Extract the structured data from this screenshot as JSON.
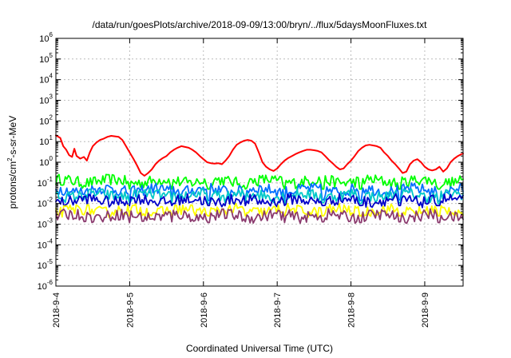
{
  "chart_data": {
    "type": "line",
    "title": "/data/run/goesPlots/archive/2018-09-09/13:00/bryn/../flux/5daysMoonFluxes.txt",
    "xlabel": "Coordinated Universal Time (UTC)",
    "ylabel": "protons/cm2-s-sr-MeV",
    "ylabel_parts": {
      "before": "protons/cm",
      "sup": "2",
      "after": "-s-sr-MeV"
    },
    "yscale": "log",
    "ylim_exp": [
      -6,
      6
    ],
    "y_ticks": [
      {
        "exp": "-6"
      },
      {
        "exp": "-5"
      },
      {
        "exp": "-4"
      },
      {
        "exp": "-3"
      },
      {
        "exp": "-2"
      },
      {
        "exp": "-1"
      },
      {
        "exp": "0"
      },
      {
        "exp": "1"
      },
      {
        "exp": "2"
      },
      {
        "exp": "3"
      },
      {
        "exp": "4"
      },
      {
        "exp": "5"
      },
      {
        "exp": "6"
      }
    ],
    "y_tick_base": "10",
    "x_ticks": [
      "2018-9-4",
      "2018-9-5",
      "2018-9-6",
      "2018-9-7",
      "2018-9-8",
      "2018-9-9"
    ],
    "xlim_days": [
      0,
      5.52
    ],
    "grid": true,
    "series": [
      {
        "color": "#ff0000",
        "points": [
          [
            0.0,
            20
          ],
          [
            0.06,
            15
          ],
          [
            0.1,
            6
          ],
          [
            0.14,
            4
          ],
          [
            0.18,
            2.2
          ],
          [
            0.22,
            1.8
          ],
          [
            0.25,
            4.5
          ],
          [
            0.28,
            2
          ],
          [
            0.33,
            1.5
          ],
          [
            0.38,
            1.8
          ],
          [
            0.42,
            1.2
          ],
          [
            0.46,
            3
          ],
          [
            0.5,
            6
          ],
          [
            0.55,
            9
          ],
          [
            0.6,
            12
          ],
          [
            0.65,
            14
          ],
          [
            0.7,
            17
          ],
          [
            0.75,
            19
          ],
          [
            0.8,
            18
          ],
          [
            0.85,
            17
          ],
          [
            0.9,
            12
          ],
          [
            0.95,
            6
          ],
          [
            1.0,
            3
          ],
          [
            1.05,
            1.5
          ],
          [
            1.1,
            0.7
          ],
          [
            1.15,
            0.3
          ],
          [
            1.2,
            0.22
          ],
          [
            1.25,
            0.3
          ],
          [
            1.3,
            0.45
          ],
          [
            1.35,
            0.8
          ],
          [
            1.4,
            1.2
          ],
          [
            1.45,
            1.6
          ],
          [
            1.5,
            2.0
          ],
          [
            1.55,
            3.0
          ],
          [
            1.6,
            4
          ],
          [
            1.65,
            5
          ],
          [
            1.7,
            6
          ],
          [
            1.75,
            5.5
          ],
          [
            1.8,
            5
          ],
          [
            1.85,
            4
          ],
          [
            1.9,
            3
          ],
          [
            1.95,
            2
          ],
          [
            2.0,
            1.4
          ],
          [
            2.05,
            1.0
          ],
          [
            2.1,
            0.9
          ],
          [
            2.15,
            0.85
          ],
          [
            2.2,
            0.9
          ],
          [
            2.25,
            0.8
          ],
          [
            2.3,
            1.2
          ],
          [
            2.35,
            2
          ],
          [
            2.4,
            4
          ],
          [
            2.45,
            7
          ],
          [
            2.5,
            9
          ],
          [
            2.55,
            11
          ],
          [
            2.6,
            12
          ],
          [
            2.65,
            11
          ],
          [
            2.7,
            8
          ],
          [
            2.75,
            3
          ],
          [
            2.8,
            1.0
          ],
          [
            2.85,
            0.6
          ],
          [
            2.9,
            0.45
          ],
          [
            2.95,
            0.38
          ],
          [
            3.0,
            0.5
          ],
          [
            3.05,
            0.8
          ],
          [
            3.1,
            1.2
          ],
          [
            3.15,
            1.6
          ],
          [
            3.2,
            2.0
          ],
          [
            3.25,
            2.5
          ],
          [
            3.3,
            3
          ],
          [
            3.35,
            3.5
          ],
          [
            3.4,
            4
          ],
          [
            3.45,
            4
          ],
          [
            3.5,
            3.8
          ],
          [
            3.55,
            3.5
          ],
          [
            3.6,
            3
          ],
          [
            3.65,
            2
          ],
          [
            3.7,
            1.3
          ],
          [
            3.75,
            0.9
          ],
          [
            3.8,
            0.6
          ],
          [
            3.85,
            0.45
          ],
          [
            3.9,
            0.5
          ],
          [
            3.95,
            0.8
          ],
          [
            4.0,
            1.2
          ],
          [
            4.05,
            2
          ],
          [
            4.1,
            3.5
          ],
          [
            4.15,
            5
          ],
          [
            4.2,
            6.5
          ],
          [
            4.25,
            7
          ],
          [
            4.3,
            6.5
          ],
          [
            4.35,
            6
          ],
          [
            4.4,
            5
          ],
          [
            4.45,
            3
          ],
          [
            4.5,
            2
          ],
          [
            4.55,
            1.2
          ],
          [
            4.6,
            0.8
          ],
          [
            4.65,
            0.5
          ],
          [
            4.7,
            0.3
          ],
          [
            4.75,
            0.35
          ],
          [
            4.8,
            0.8
          ],
          [
            4.85,
            1.2
          ],
          [
            4.9,
            1.4
          ],
          [
            4.95,
            1.0
          ],
          [
            5.0,
            0.6
          ],
          [
            5.05,
            0.45
          ],
          [
            5.1,
            0.4
          ],
          [
            5.15,
            0.45
          ],
          [
            5.2,
            0.6
          ],
          [
            5.25,
            0.35
          ],
          [
            5.3,
            0.5
          ],
          [
            5.35,
            1.0
          ],
          [
            5.4,
            1.5
          ],
          [
            5.45,
            2.0
          ],
          [
            5.5,
            2.5
          ],
          [
            5.52,
            2.6
          ]
        ]
      },
      {
        "color": "#00ff00",
        "base": 0.12,
        "dips": [
          [
            1.0,
            0.05
          ],
          [
            1.57,
            0.05
          ],
          [
            2.07,
            0.05
          ],
          [
            2.57,
            0.05
          ],
          [
            3.1,
            0.05
          ],
          [
            3.62,
            0.05
          ],
          [
            4.13,
            0.05
          ],
          [
            4.66,
            0.05
          ],
          [
            5.19,
            0.05
          ]
        ]
      },
      {
        "color": "#0070ff",
        "base": 0.045,
        "dips": [
          [
            1.0,
            0.012
          ],
          [
            1.57,
            0.015
          ],
          [
            2.07,
            0.014
          ],
          [
            2.57,
            0.016
          ],
          [
            3.1,
            0.012
          ],
          [
            3.62,
            0.015
          ],
          [
            4.13,
            0.014
          ],
          [
            4.66,
            0.015
          ],
          [
            5.19,
            0.013
          ]
        ]
      },
      {
        "color": "#00c8c8",
        "base": 0.025,
        "dips": [
          [
            1.0,
            0.01
          ],
          [
            1.57,
            0.011
          ],
          [
            2.07,
            0.01
          ],
          [
            2.57,
            0.011
          ],
          [
            3.1,
            0.01
          ],
          [
            3.62,
            0.011
          ],
          [
            4.13,
            0.01
          ],
          [
            4.66,
            0.011
          ],
          [
            5.19,
            0.01
          ]
        ]
      },
      {
        "color": "#0000c8",
        "base": 0.014,
        "dips": [
          [
            1.0,
            0.008
          ],
          [
            1.57,
            0.008
          ],
          [
            2.07,
            0.008
          ],
          [
            2.57,
            0.008
          ],
          [
            3.1,
            0.008
          ],
          [
            3.62,
            0.008
          ],
          [
            4.13,
            0.008
          ],
          [
            4.66,
            0.008
          ],
          [
            5.19,
            0.008
          ]
        ]
      },
      {
        "color": "#ffff00",
        "base": 0.0045,
        "dips": [
          [
            1.0,
            0.0025
          ],
          [
            1.57,
            0.0025
          ],
          [
            2.07,
            0.0025
          ],
          [
            2.57,
            0.0025
          ],
          [
            3.1,
            0.0025
          ],
          [
            3.62,
            0.0025
          ],
          [
            4.13,
            0.0025
          ],
          [
            4.66,
            0.0025
          ],
          [
            5.19,
            0.0025
          ]
        ]
      },
      {
        "color": "#8b3a6e",
        "base": 0.0025,
        "dips": [
          [
            1.0,
            0.0012
          ],
          [
            1.57,
            0.0013
          ],
          [
            2.07,
            0.0012
          ],
          [
            2.57,
            0.0013
          ],
          [
            3.1,
            0.0012
          ],
          [
            3.62,
            0.0013
          ],
          [
            4.13,
            0.0012
          ],
          [
            4.66,
            0.0013
          ],
          [
            5.19,
            0.0012
          ]
        ]
      }
    ]
  }
}
